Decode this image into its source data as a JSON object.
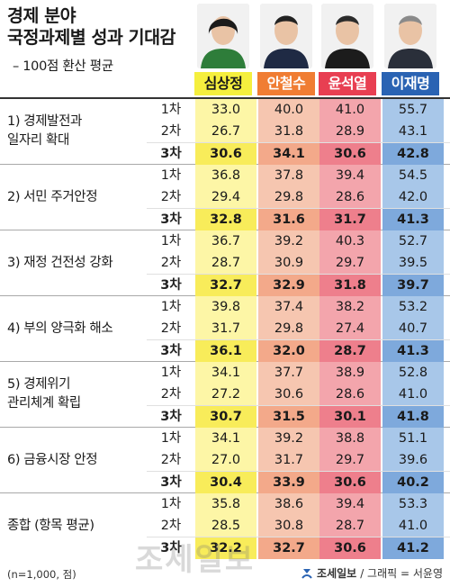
{
  "title_line1": "경제 분야",
  "title_line2": "국정과제별 성과 기대감",
  "subtitle": "– 100점 환산 평균",
  "chart_data": {
    "type": "table",
    "candidates": [
      {
        "name": "심상정",
        "tag_color": "#f5ef3e",
        "tag_text_color": "#1a1a1a",
        "col_color": "#fdf6a6",
        "bold_color": "#f8ec5a"
      },
      {
        "name": "안철수",
        "tag_color": "#f07d33",
        "tag_text_color": "#ffffff",
        "col_color": "#f6c6b0",
        "bold_color": "#f3a98a"
      },
      {
        "name": "윤석열",
        "tag_color": "#e83f52",
        "tag_text_color": "#ffffff",
        "col_color": "#f3a5ac",
        "bold_color": "#ee7f8c"
      },
      {
        "name": "이재명",
        "tag_color": "#2a63b3",
        "tag_text_color": "#ffffff",
        "col_color": "#a8c7e9",
        "bold_color": "#7ea9dc"
      }
    ],
    "rounds": [
      "1차",
      "2차",
      "3차"
    ],
    "categories": [
      {
        "label": "1) 경제발전과\n   일자리 확대",
        "values": [
          [
            33.0,
            40.0,
            41.0,
            55.7
          ],
          [
            26.7,
            31.8,
            28.9,
            43.1
          ],
          [
            30.6,
            34.1,
            30.6,
            42.8
          ]
        ]
      },
      {
        "label": "2) 서민 주거안정",
        "values": [
          [
            36.8,
            37.8,
            39.4,
            54.5
          ],
          [
            29.4,
            29.8,
            28.6,
            42.0
          ],
          [
            32.8,
            31.6,
            31.7,
            41.3
          ]
        ]
      },
      {
        "label": "3) 재정 건전성 강화",
        "values": [
          [
            36.7,
            39.2,
            40.3,
            52.7
          ],
          [
            28.7,
            30.9,
            29.7,
            39.5
          ],
          [
            32.7,
            32.9,
            31.8,
            39.7
          ]
        ]
      },
      {
        "label": "4) 부의 양극화 해소",
        "values": [
          [
            39.8,
            37.4,
            38.2,
            53.2
          ],
          [
            31.7,
            29.8,
            27.4,
            40.7
          ],
          [
            36.1,
            32.0,
            28.7,
            41.3
          ]
        ]
      },
      {
        "label": "5) 경제위기\n   관리체계 확립",
        "values": [
          [
            34.1,
            37.7,
            38.9,
            52.8
          ],
          [
            27.2,
            30.6,
            28.6,
            41.0
          ],
          [
            30.7,
            31.5,
            30.1,
            41.8
          ]
        ]
      },
      {
        "label": "6) 금융시장 안정",
        "values": [
          [
            34.1,
            39.2,
            38.8,
            51.1
          ],
          [
            27.0,
            31.7,
            29.7,
            39.6
          ],
          [
            30.4,
            33.9,
            30.6,
            40.2
          ]
        ]
      },
      {
        "label": "종합 (항목 평균)",
        "values": [
          [
            35.8,
            38.6,
            39.4,
            53.3
          ],
          [
            28.5,
            30.8,
            28.7,
            41.0
          ],
          [
            32.2,
            32.7,
            30.6,
            41.2
          ]
        ]
      }
    ]
  },
  "footer": {
    "note": "(n=1,000, 점)",
    "brand": "조세일보",
    "credit": "/ 그래픽 = 서윤영"
  },
  "watermark": "조세일보"
}
